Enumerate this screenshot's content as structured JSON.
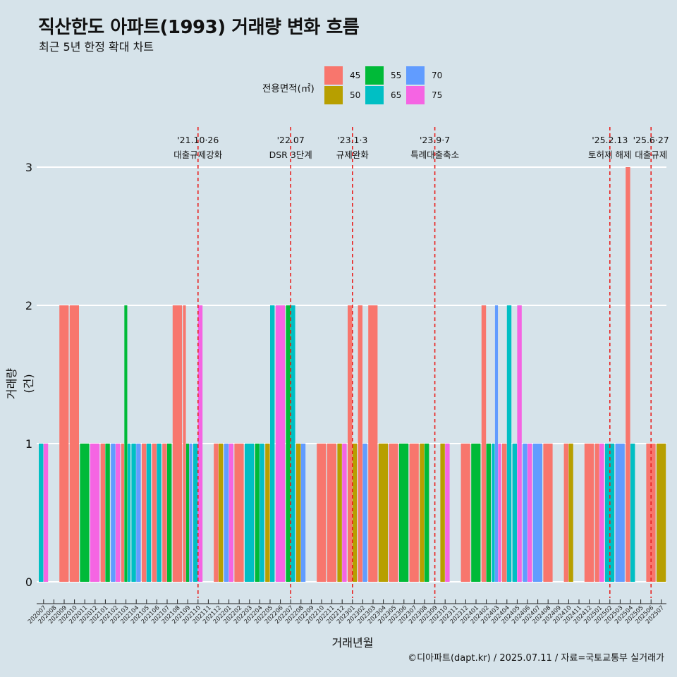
{
  "title": "직산한도 아파트(1993) 거래량 변화 흐름",
  "subtitle": "최근 5년 한정 확대 차트",
  "caption": "©디아파트(dapt.kr) / 2025.07.11 / 자료=국토교통부 실거래가",
  "legend": {
    "title": "전용면적(㎡)",
    "items": [
      {
        "label": "45",
        "color": "#f8766d"
      },
      {
        "label": "50",
        "color": "#b79f00"
      },
      {
        "label": "55",
        "color": "#00ba38"
      },
      {
        "label": "65",
        "color": "#00bfc4"
      },
      {
        "label": "70",
        "color": "#619cff"
      },
      {
        "label": "75",
        "color": "#f564e3"
      }
    ]
  },
  "chart_data": {
    "type": "bar",
    "xlabel": "거래년월",
    "ylabel": "거래량(건)",
    "ylim": [
      0,
      3
    ],
    "yticks": [
      0,
      1,
      2,
      3
    ],
    "categories": [
      "202007",
      "202008",
      "202009",
      "202010",
      "202011",
      "202012",
      "202101",
      "202102",
      "202103",
      "202104",
      "202105",
      "202106",
      "202107",
      "202108",
      "202109",
      "202110",
      "202111",
      "202112",
      "202201",
      "202202",
      "202203",
      "202204",
      "202205",
      "202206",
      "202207",
      "202208",
      "202209",
      "202210",
      "202211",
      "202212",
      "202301",
      "202302",
      "202303",
      "202304",
      "202305",
      "202306",
      "202307",
      "202308",
      "202309",
      "202310",
      "202311",
      "202312",
      "202401",
      "202402",
      "202403",
      "202404",
      "202405",
      "202406",
      "202407",
      "202408",
      "202409",
      "202410",
      "202411",
      "202412",
      "202501",
      "202502",
      "202503",
      "202504",
      "202505",
      "202506",
      "202507"
    ],
    "months": [
      {
        "month": "202007",
        "bars": [
          {
            "area": "65",
            "value": 1
          },
          {
            "area": "75",
            "value": 1
          }
        ]
      },
      {
        "month": "202008",
        "bars": []
      },
      {
        "month": "202009",
        "bars": [
          {
            "area": "45",
            "value": 2
          }
        ]
      },
      {
        "month": "202010",
        "bars": [
          {
            "area": "45",
            "value": 2
          }
        ]
      },
      {
        "month": "202011",
        "bars": [
          {
            "area": "55",
            "value": 1
          }
        ]
      },
      {
        "month": "202012",
        "bars": [
          {
            "area": "75",
            "value": 1
          }
        ]
      },
      {
        "month": "202101",
        "bars": [
          {
            "area": "45",
            "value": 1
          },
          {
            "area": "55",
            "value": 1
          }
        ]
      },
      {
        "month": "202102",
        "bars": [
          {
            "area": "70",
            "value": 1
          },
          {
            "area": "75",
            "value": 1
          }
        ]
      },
      {
        "month": "202103",
        "bars": [
          {
            "area": "45",
            "value": 1
          },
          {
            "area": "55",
            "value": 2
          },
          {
            "area": "65",
            "value": 1
          }
        ]
      },
      {
        "month": "202104",
        "bars": [
          {
            "area": "65",
            "value": 1
          },
          {
            "area": "70",
            "value": 1
          }
        ]
      },
      {
        "month": "202105",
        "bars": [
          {
            "area": "45",
            "value": 1
          },
          {
            "area": "65",
            "value": 1
          }
        ]
      },
      {
        "month": "202106",
        "bars": [
          {
            "area": "45",
            "value": 1
          },
          {
            "area": "65",
            "value": 1
          }
        ]
      },
      {
        "month": "202107",
        "bars": [
          {
            "area": "45",
            "value": 1
          },
          {
            "area": "55",
            "value": 1
          }
        ]
      },
      {
        "month": "202108",
        "bars": [
          {
            "area": "45",
            "value": 2
          }
        ]
      },
      {
        "month": "202109",
        "bars": [
          {
            "area": "45",
            "value": 2
          },
          {
            "area": "55",
            "value": 1
          },
          {
            "area": "70",
            "value": 1
          }
        ]
      },
      {
        "month": "202110",
        "bars": [
          {
            "area": "65",
            "value": 1
          },
          {
            "area": "75",
            "value": 2
          }
        ]
      },
      {
        "month": "202111",
        "bars": []
      },
      {
        "month": "202112",
        "bars": [
          {
            "area": "45",
            "value": 1
          },
          {
            "area": "50",
            "value": 1
          }
        ]
      },
      {
        "month": "202201",
        "bars": [
          {
            "area": "70",
            "value": 1
          },
          {
            "area": "75",
            "value": 1
          }
        ]
      },
      {
        "month": "202202",
        "bars": [
          {
            "area": "45",
            "value": 1
          }
        ]
      },
      {
        "month": "202203",
        "bars": [
          {
            "area": "65",
            "value": 1
          }
        ]
      },
      {
        "month": "202204",
        "bars": [
          {
            "area": "55",
            "value": 1
          },
          {
            "area": "65",
            "value": 1
          }
        ]
      },
      {
        "month": "202205",
        "bars": [
          {
            "area": "50",
            "value": 1
          },
          {
            "area": "65",
            "value": 2
          }
        ]
      },
      {
        "month": "202206",
        "bars": [
          {
            "area": "75",
            "value": 2
          }
        ]
      },
      {
        "month": "202207",
        "bars": [
          {
            "area": "55",
            "value": 2
          },
          {
            "area": "65",
            "value": 2
          }
        ]
      },
      {
        "month": "202208",
        "bars": [
          {
            "area": "50",
            "value": 1
          },
          {
            "area": "70",
            "value": 1
          }
        ]
      },
      {
        "month": "202209",
        "bars": []
      },
      {
        "month": "202210",
        "bars": [
          {
            "area": "45",
            "value": 1
          }
        ]
      },
      {
        "month": "202211",
        "bars": [
          {
            "area": "45",
            "value": 1
          }
        ]
      },
      {
        "month": "202212",
        "bars": [
          {
            "area": "50",
            "value": 1
          },
          {
            "area": "75",
            "value": 1
          }
        ]
      },
      {
        "month": "202301",
        "bars": [
          {
            "area": "45",
            "value": 2
          },
          {
            "area": "50",
            "value": 1
          }
        ]
      },
      {
        "month": "202302",
        "bars": [
          {
            "area": "45",
            "value": 2
          },
          {
            "area": "70",
            "value": 1
          }
        ]
      },
      {
        "month": "202303",
        "bars": [
          {
            "area": "45",
            "value": 2
          }
        ]
      },
      {
        "month": "202304",
        "bars": [
          {
            "area": "50",
            "value": 1
          }
        ]
      },
      {
        "month": "202305",
        "bars": [
          {
            "area": "45",
            "value": 1
          }
        ]
      },
      {
        "month": "202306",
        "bars": [
          {
            "area": "55",
            "value": 1
          }
        ]
      },
      {
        "month": "202307",
        "bars": [
          {
            "area": "45",
            "value": 1
          }
        ]
      },
      {
        "month": "202308",
        "bars": [
          {
            "area": "50",
            "value": 1
          },
          {
            "area": "55",
            "value": 1
          }
        ]
      },
      {
        "month": "202309",
        "bars": []
      },
      {
        "month": "202310",
        "bars": [
          {
            "area": "50",
            "value": 1
          },
          {
            "area": "75",
            "value": 1
          }
        ]
      },
      {
        "month": "202311",
        "bars": []
      },
      {
        "month": "202312",
        "bars": [
          {
            "area": "45",
            "value": 1
          }
        ]
      },
      {
        "month": "202401",
        "bars": [
          {
            "area": "55",
            "value": 1
          }
        ]
      },
      {
        "month": "202402",
        "bars": [
          {
            "area": "45",
            "value": 2
          },
          {
            "area": "55",
            "value": 1
          }
        ]
      },
      {
        "month": "202403",
        "bars": [
          {
            "area": "65",
            "value": 1
          },
          {
            "area": "70",
            "value": 2
          },
          {
            "area": "75",
            "value": 1
          }
        ]
      },
      {
        "month": "202404",
        "bars": [
          {
            "area": "45",
            "value": 1
          },
          {
            "area": "65",
            "value": 2
          }
        ]
      },
      {
        "month": "202405",
        "bars": [
          {
            "area": "65",
            "value": 1
          },
          {
            "area": "75",
            "value": 2
          }
        ]
      },
      {
        "month": "202406",
        "bars": [
          {
            "area": "70",
            "value": 1
          },
          {
            "area": "75",
            "value": 1
          }
        ]
      },
      {
        "month": "202407",
        "bars": [
          {
            "area": "70",
            "value": 1
          }
        ]
      },
      {
        "month": "202408",
        "bars": [
          {
            "area": "45",
            "value": 1
          }
        ]
      },
      {
        "month": "202409",
        "bars": []
      },
      {
        "month": "202410",
        "bars": [
          {
            "area": "45",
            "value": 1
          },
          {
            "area": "50",
            "value": 1
          }
        ]
      },
      {
        "month": "202411",
        "bars": []
      },
      {
        "month": "202412",
        "bars": [
          {
            "area": "45",
            "value": 1
          }
        ]
      },
      {
        "month": "202501",
        "bars": [
          {
            "area": "45",
            "value": 1
          },
          {
            "area": "75",
            "value": 1
          }
        ]
      },
      {
        "month": "202502",
        "bars": [
          {
            "area": "65",
            "value": 1
          }
        ]
      },
      {
        "month": "202503",
        "bars": [
          {
            "area": "70",
            "value": 1
          }
        ]
      },
      {
        "month": "202504",
        "bars": [
          {
            "area": "45",
            "value": 3
          },
          {
            "area": "65",
            "value": 1
          }
        ]
      },
      {
        "month": "202505",
        "bars": []
      },
      {
        "month": "202506",
        "bars": [
          {
            "area": "45",
            "value": 1
          }
        ]
      },
      {
        "month": "202507",
        "bars": [
          {
            "area": "50",
            "value": 1
          }
        ]
      }
    ],
    "events": [
      {
        "month": "202110",
        "date": "'21.10·26",
        "label": "대출규제강화"
      },
      {
        "month": "202207",
        "date": "'22.07",
        "label": "DSR 3단계"
      },
      {
        "month": "202301",
        "date": "'23.1·3",
        "label": "규제완화"
      },
      {
        "month": "202309",
        "date": "'23.9·7",
        "label": "특례대출축소"
      },
      {
        "month": "202502",
        "date": "'25.2.13",
        "label": "토허제 해제"
      },
      {
        "month": "202506",
        "date": "'25.6·27",
        "label": "대출규제"
      }
    ]
  }
}
